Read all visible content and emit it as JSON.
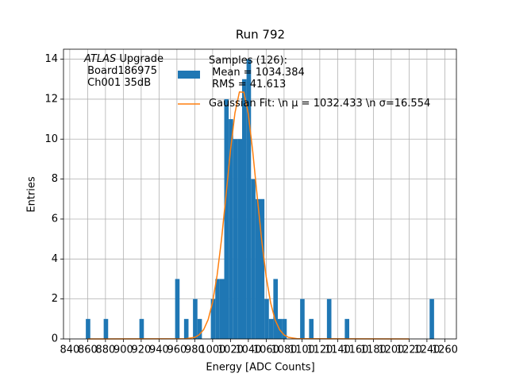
{
  "chart_data": {
    "type": "histogram",
    "title": "Run 792",
    "xlabel": "Energy [ADC Counts]",
    "ylabel": "Entries",
    "name": "Samples (126):\n Mean = 1034.384\n RMS = 41.613",
    "color": "#1f77b4",
    "bins": [
      858,
      863,
      878,
      883,
      918,
      923,
      958,
      963,
      968,
      973,
      978,
      983,
      988,
      998,
      1003,
      1008,
      1013,
      1018,
      1023,
      1028,
      1033,
      1038,
      1043,
      1048,
      1053,
      1058,
      1063,
      1068,
      1073,
      1078,
      1083,
      1098,
      1103,
      1108,
      1113,
      1128,
      1133,
      1148,
      1153,
      1243,
      1248
    ],
    "counts": [
      1,
      0,
      1,
      0,
      1,
      0,
      3,
      0,
      1,
      0,
      2,
      1,
      0,
      2,
      3,
      3,
      12,
      11,
      10,
      10,
      13,
      14,
      8,
      7,
      7,
      2,
      1,
      3,
      1,
      1,
      0,
      2,
      0,
      1,
      0,
      2,
      0,
      1,
      0,
      2
    ],
    "series": [
      {
        "type": "line",
        "name": "Gaussian Fit: \\n μ = 1032.433 \\n σ=16.554",
        "color": "#ff7f0e",
        "x": [
          860,
          970,
          980,
          985,
          990,
          995,
          1000,
          1005,
          1010,
          1015,
          1020,
          1025,
          1030,
          1035,
          1040,
          1045,
          1050,
          1055,
          1060,
          1065,
          1070,
          1075,
          1080,
          1085,
          1095,
          1220
        ],
        "values": [
          0,
          0.01,
          0.08,
          0.21,
          0.47,
          0.97,
          1.84,
          3.18,
          5.0,
          7.19,
          9.44,
          11.31,
          12.36,
          12.35,
          11.25,
          9.35,
          7.1,
          4.92,
          3.11,
          1.8,
          0.95,
          0.46,
          0.2,
          0.08,
          0.01,
          0
        ]
      }
    ],
    "annotation": {
      "emphasis": "ATLAS",
      "text": " Upgrade\n Board186975\n Ch001 35dB"
    },
    "xlim": [
      833,
      1273
    ],
    "ylim": [
      0,
      14.5
    ],
    "xticks": [
      840,
      860,
      880,
      900,
      920,
      940,
      960,
      980,
      1000,
      1020,
      1040,
      1060,
      1080,
      1100,
      1120,
      1140,
      1160,
      1180,
      1200,
      1220,
      1240,
      1260
    ],
    "yticks": [
      0,
      2,
      4,
      6,
      8,
      10,
      12,
      14
    ],
    "grid": true
  }
}
